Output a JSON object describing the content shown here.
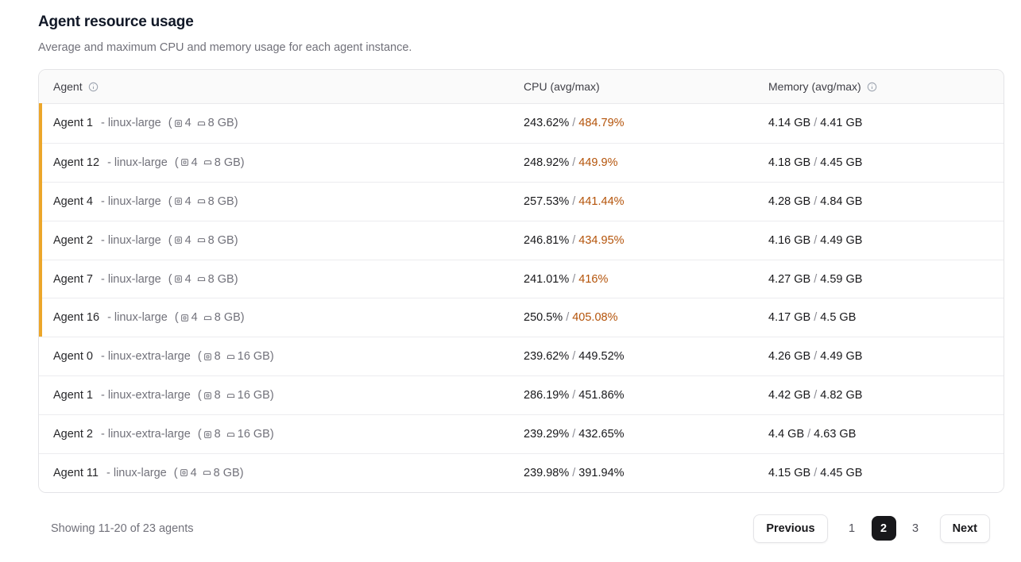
{
  "page": {
    "title": "Agent resource usage",
    "subtitle": "Average and maximum CPU and memory usage for each agent instance."
  },
  "table": {
    "columns": [
      {
        "label": "Agent",
        "info_icon": true
      },
      {
        "label": "CPU (avg/max)",
        "info_icon": false
      },
      {
        "label": "Memory (avg/max)",
        "info_icon": true
      }
    ],
    "separator": "/",
    "open_paren": "(",
    "close_paren": ")",
    "rows": [
      {
        "agent": "Agent 1",
        "instance_label": "- linux-large",
        "cpus": "4",
        "memory_spec": "8 GB",
        "cpu_avg": "243.62%",
        "cpu_max": "484.79%",
        "high_cpu": true,
        "mem_avg": "4.14 GB",
        "mem_max": "4.41 GB"
      },
      {
        "agent": "Agent 12",
        "instance_label": "- linux-large",
        "cpus": "4",
        "memory_spec": "8 GB",
        "cpu_avg": "248.92%",
        "cpu_max": "449.9%",
        "high_cpu": true,
        "mem_avg": "4.18 GB",
        "mem_max": "4.45 GB"
      },
      {
        "agent": "Agent 4",
        "instance_label": "- linux-large",
        "cpus": "4",
        "memory_spec": "8 GB",
        "cpu_avg": "257.53%",
        "cpu_max": "441.44%",
        "high_cpu": true,
        "mem_avg": "4.28 GB",
        "mem_max": "4.84 GB"
      },
      {
        "agent": "Agent 2",
        "instance_label": "- linux-large",
        "cpus": "4",
        "memory_spec": "8 GB",
        "cpu_avg": "246.81%",
        "cpu_max": "434.95%",
        "high_cpu": true,
        "mem_avg": "4.16 GB",
        "mem_max": "4.49 GB"
      },
      {
        "agent": "Agent 7",
        "instance_label": "- linux-large",
        "cpus": "4",
        "memory_spec": "8 GB",
        "cpu_avg": "241.01%",
        "cpu_max": "416%",
        "high_cpu": true,
        "mem_avg": "4.27 GB",
        "mem_max": "4.59 GB"
      },
      {
        "agent": "Agent 16",
        "instance_label": "- linux-large",
        "cpus": "4",
        "memory_spec": "8 GB",
        "cpu_avg": "250.5%",
        "cpu_max": "405.08%",
        "high_cpu": true,
        "mem_avg": "4.17 GB",
        "mem_max": "4.5 GB"
      },
      {
        "agent": "Agent 0",
        "instance_label": "- linux-extra-large",
        "cpus": "8",
        "memory_spec": "16 GB",
        "cpu_avg": "239.62%",
        "cpu_max": "449.52%",
        "high_cpu": false,
        "mem_avg": "4.26 GB",
        "mem_max": "4.49 GB"
      },
      {
        "agent": "Agent 1",
        "instance_label": "- linux-extra-large",
        "cpus": "8",
        "memory_spec": "16 GB",
        "cpu_avg": "286.19%",
        "cpu_max": "451.86%",
        "high_cpu": false,
        "mem_avg": "4.42 GB",
        "mem_max": "4.82 GB"
      },
      {
        "agent": "Agent 2",
        "instance_label": "- linux-extra-large",
        "cpus": "8",
        "memory_spec": "16 GB",
        "cpu_avg": "239.29%",
        "cpu_max": "432.65%",
        "high_cpu": false,
        "mem_avg": "4.4 GB",
        "mem_max": "4.63 GB"
      },
      {
        "agent": "Agent 11",
        "instance_label": "- linux-large",
        "cpus": "4",
        "memory_spec": "8 GB",
        "cpu_avg": "239.98%",
        "cpu_max": "391.94%",
        "high_cpu": false,
        "mem_avg": "4.15 GB",
        "mem_max": "4.45 GB"
      }
    ]
  },
  "footer": {
    "showing_text": "Showing 11-20 of 23 agents",
    "pagination": {
      "previous_label": "Previous",
      "pages": [
        "1",
        "2",
        "3"
      ],
      "active_page": "2",
      "next_label": "Next"
    }
  },
  "colors": {
    "high_cpu_accent_bar": "#eca62a",
    "high_cpu_max_text": "#b45309",
    "header_background": "#fafafa",
    "table_border": "#e4e4e7",
    "secondary_text": "#71717a",
    "active_page_background": "#18181b"
  }
}
